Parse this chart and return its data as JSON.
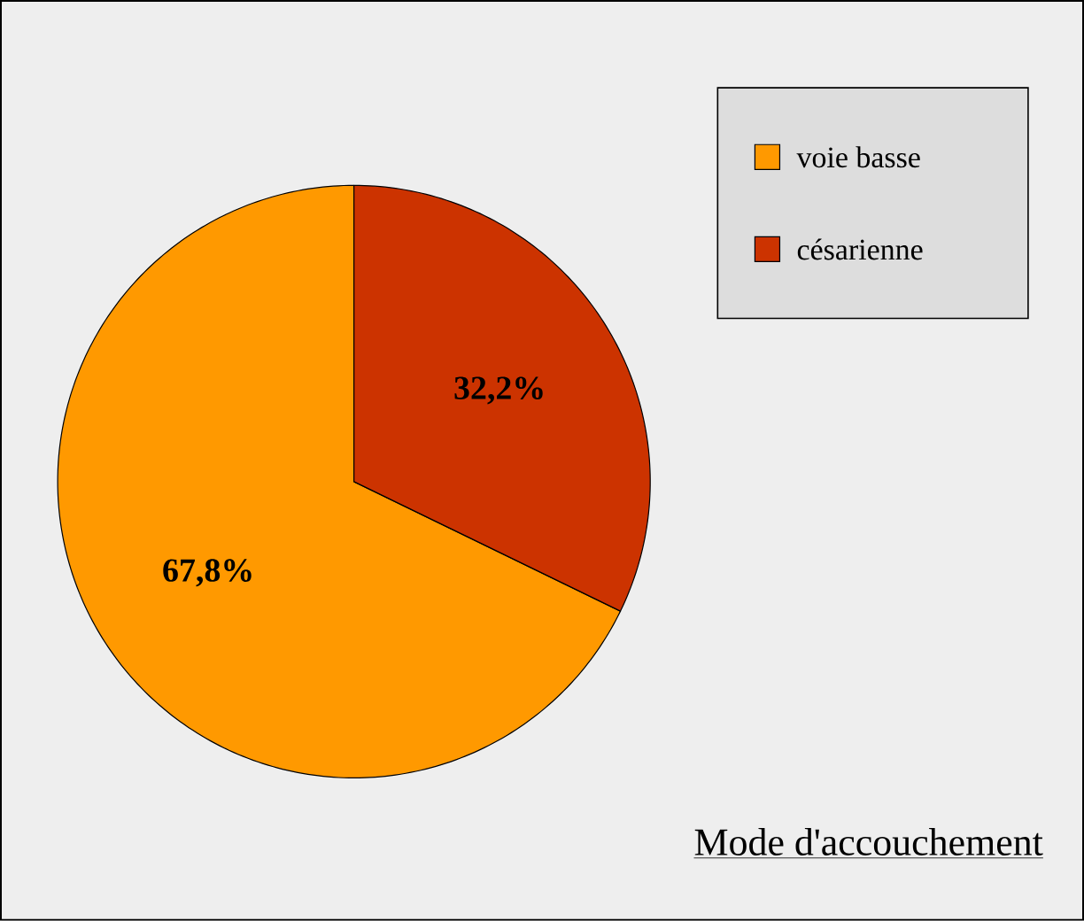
{
  "chart_data": {
    "type": "pie",
    "title": "Mode d'accouchement",
    "categories": [
      "voie basse",
      "césarienne"
    ],
    "values": [
      67.8,
      32.2
    ],
    "colors": [
      "#ff9900",
      "#cc3300"
    ],
    "value_labels": [
      "67,8%",
      "32,2%"
    ],
    "legend": "top right"
  }
}
